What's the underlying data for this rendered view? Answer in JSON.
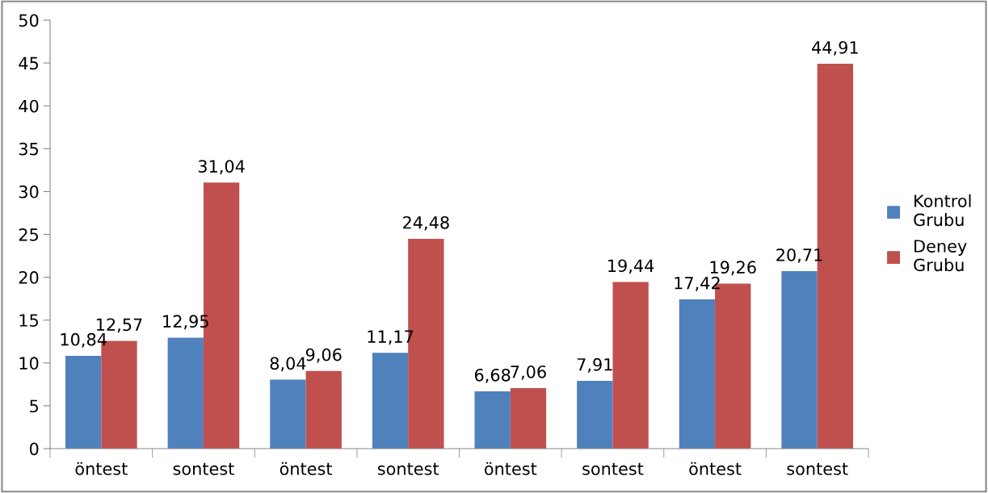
{
  "chart_data": {
    "type": "bar",
    "categories": [
      "öntest",
      "sontest",
      "öntest",
      "sontest",
      "öntest",
      "sontest",
      "öntest",
      "sontest"
    ],
    "series": [
      {
        "name": "Kontrol Grubu",
        "color": "#4f81bd",
        "values": [
          10.84,
          12.95,
          8.04,
          11.17,
          6.68,
          7.91,
          17.42,
          20.71
        ],
        "value_labels": [
          "10,84",
          "12,95",
          "8,04",
          "11,17",
          "6,68",
          "7,91",
          "17,42",
          "20,71"
        ]
      },
      {
        "name": "Deney Grubu",
        "color": "#c0504d",
        "values": [
          12.57,
          31.04,
          9.06,
          24.48,
          7.06,
          19.44,
          19.26,
          44.91
        ],
        "value_labels": [
          "12,57",
          "31,04",
          "9,06",
          "24,48",
          "7,06",
          "19,44",
          "19,26",
          "44,91"
        ]
      }
    ],
    "ylim": [
      0,
      50
    ],
    "yticks": [
      0,
      5,
      10,
      15,
      20,
      25,
      30,
      35,
      40,
      45,
      50
    ],
    "grid": false,
    "legend": "right"
  }
}
